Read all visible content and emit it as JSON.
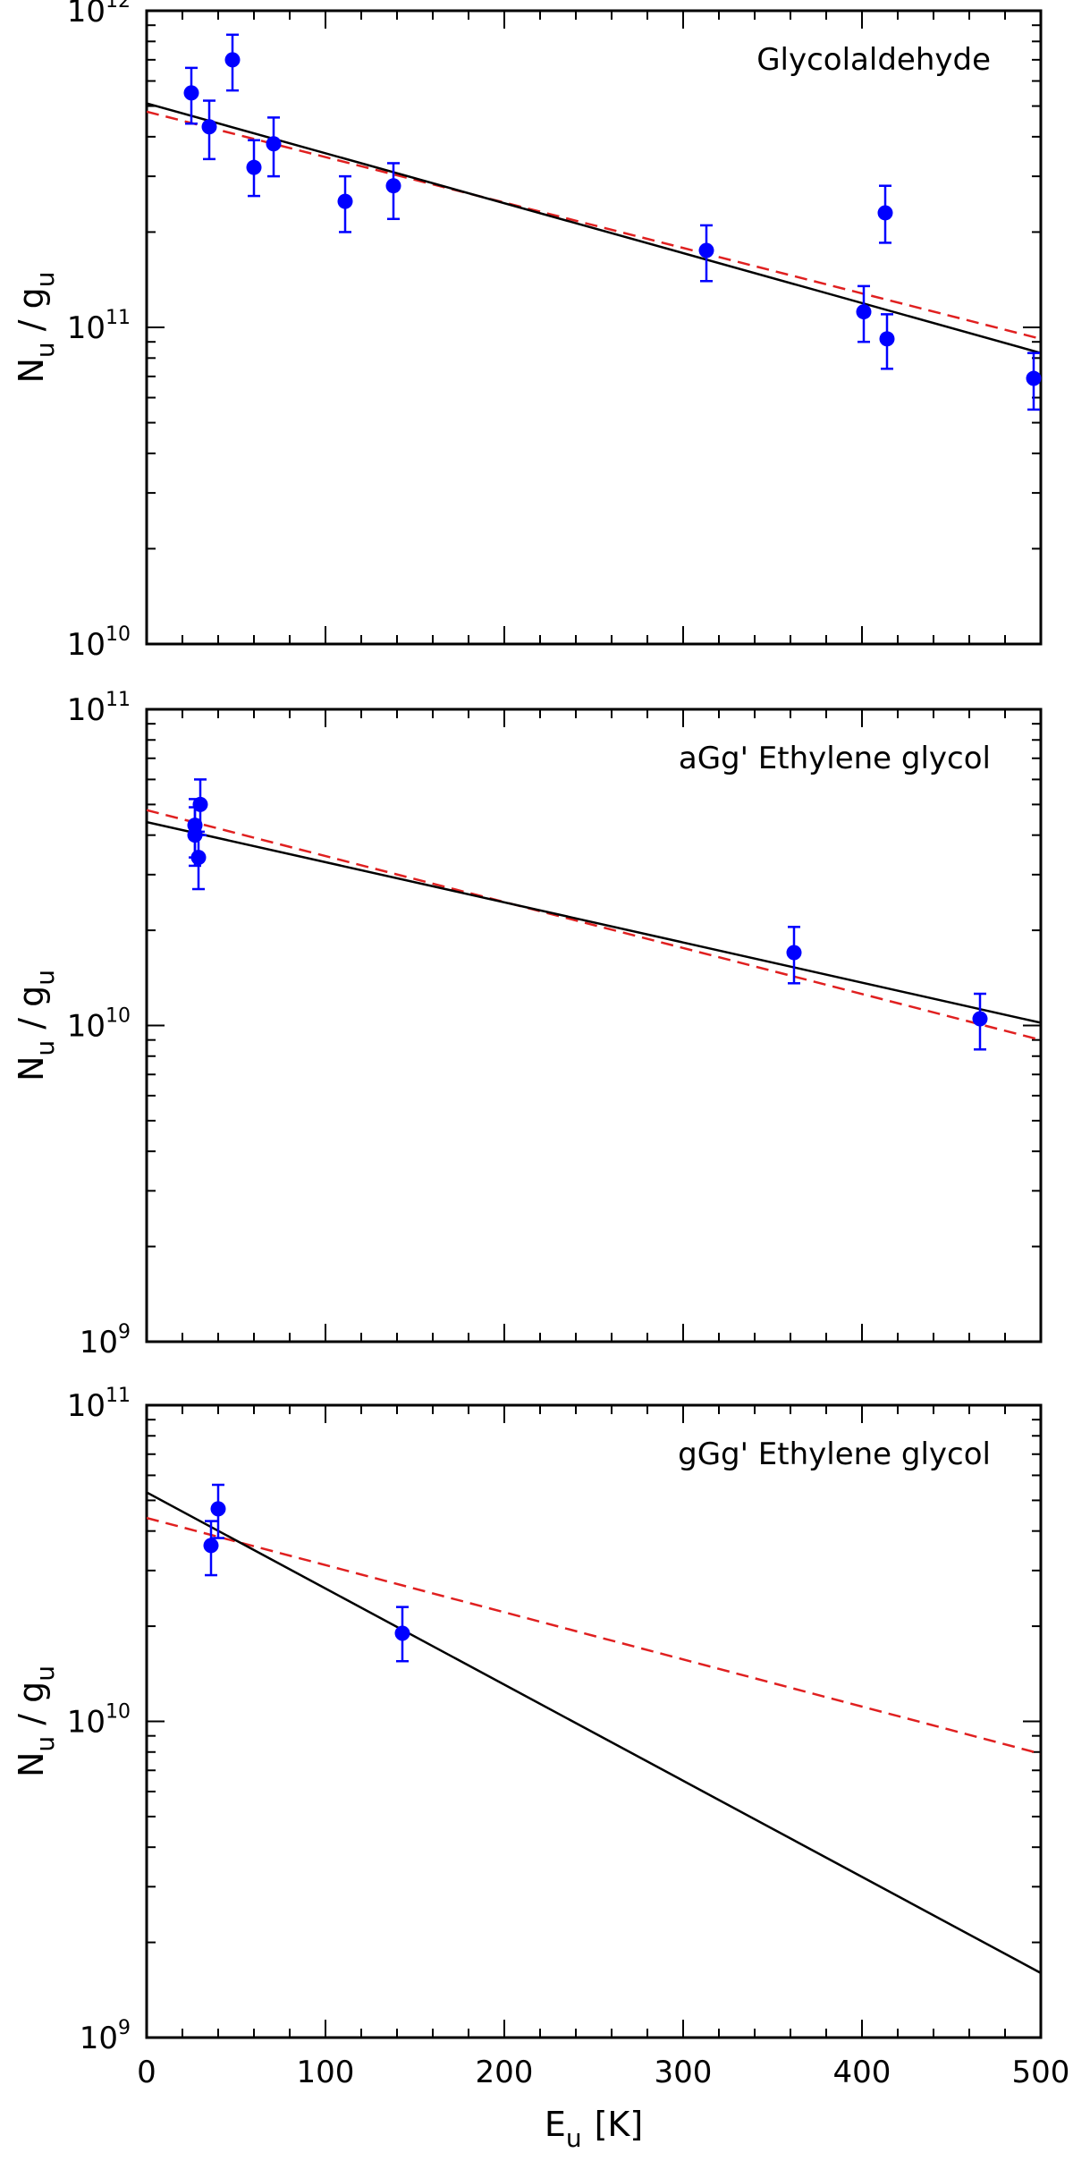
{
  "chart_data": [
    {
      "type": "scatter",
      "title": "Glycolaldehyde",
      "ylabel_main": "N",
      "ylabel_sub": "u",
      "ylabel_sep": " / ",
      "ylabel_main2": "g",
      "ylabel_sub2": "u",
      "xlim": [
        0,
        500
      ],
      "ylim": [
        10000000000.0,
        1000000000000.0
      ],
      "yscale": "log",
      "y_ticks": [
        {
          "value": 10000000000.0,
          "base": "10",
          "exp": "10"
        },
        {
          "value": 100000000000.0,
          "base": "10",
          "exp": "11"
        },
        {
          "value": 1000000000000.0,
          "base": "10",
          "exp": "12"
        }
      ],
      "points": [
        {
          "x": 25,
          "y": 550000000000.0,
          "lo": 440000000000.0,
          "hi": 660000000000.0
        },
        {
          "x": 35,
          "y": 430000000000.0,
          "lo": 340000000000.0,
          "hi": 520000000000.0
        },
        {
          "x": 48,
          "y": 700000000000.0,
          "lo": 560000000000.0,
          "hi": 840000000000.0
        },
        {
          "x": 60,
          "y": 320000000000.0,
          "lo": 260000000000.0,
          "hi": 390000000000.0
        },
        {
          "x": 71,
          "y": 380000000000.0,
          "lo": 300000000000.0,
          "hi": 460000000000.0
        },
        {
          "x": 111,
          "y": 250000000000.0,
          "lo": 200000000000.0,
          "hi": 300000000000.0
        },
        {
          "x": 138,
          "y": 280000000000.0,
          "lo": 220000000000.0,
          "hi": 330000000000.0
        },
        {
          "x": 313,
          "y": 175000000000.0,
          "lo": 140000000000.0,
          "hi": 210000000000.0
        },
        {
          "x": 401,
          "y": 112000000000.0,
          "lo": 90000000000.0,
          "hi": 135000000000.0
        },
        {
          "x": 413,
          "y": 230000000000.0,
          "lo": 185000000000.0,
          "hi": 280000000000.0
        },
        {
          "x": 414,
          "y": 92000000000.0,
          "lo": 74000000000.0,
          "hi": 110000000000.0
        },
        {
          "x": 496,
          "y": 69000000000.0,
          "lo": 55000000000.0,
          "hi": 83000000000.0
        }
      ],
      "fit_solid": {
        "x": [
          0,
          500
        ],
        "y": [
          510000000000.0,
          83000000000.0
        ]
      },
      "fit_dashed": {
        "x": [
          0,
          500
        ],
        "y": [
          480000000000.0,
          92000000000.0
        ]
      }
    },
    {
      "type": "scatter",
      "title": "aGg' Ethylene glycol",
      "ylabel_main": "N",
      "ylabel_sub": "u",
      "ylabel_sep": " / ",
      "ylabel_main2": "g",
      "ylabel_sub2": "u",
      "xlim": [
        0,
        500
      ],
      "ylim": [
        1000000000.0,
        100000000000.0
      ],
      "yscale": "log",
      "y_ticks": [
        {
          "value": 1000000000.0,
          "base": "10",
          "exp": "9"
        },
        {
          "value": 10000000000.0,
          "base": "10",
          "exp": "10"
        },
        {
          "value": 100000000000.0,
          "base": "10",
          "exp": "11"
        }
      ],
      "points": [
        {
          "x": 27,
          "y": 43000000000.0,
          "lo": 34000000000.0,
          "hi": 52000000000.0
        },
        {
          "x": 27,
          "y": 40000000000.0,
          "lo": 32000000000.0,
          "hi": 49000000000.0
        },
        {
          "x": 30,
          "y": 50000000000.0,
          "lo": 40000000000.0,
          "hi": 60000000000.0
        },
        {
          "x": 29,
          "y": 34000000000.0,
          "lo": 27000000000.0,
          "hi": 41000000000.0
        },
        {
          "x": 362,
          "y": 17000000000.0,
          "lo": 13600000000.0,
          "hi": 20500000000.0
        },
        {
          "x": 466,
          "y": 10500000000.0,
          "lo": 8400000000.0,
          "hi": 12600000000.0
        }
      ],
      "fit_solid": {
        "x": [
          0,
          500
        ],
        "y": [
          44000000000.0,
          10200000000.0
        ]
      },
      "fit_dashed": {
        "x": [
          0,
          500
        ],
        "y": [
          48000000000.0,
          9000000000.0
        ]
      }
    },
    {
      "type": "scatter",
      "title": "gGg' Ethylene glycol",
      "ylabel_main": "N",
      "ylabel_sub": "u",
      "ylabel_sep": " / ",
      "ylabel_main2": "g",
      "ylabel_sub2": "u",
      "xlabel_main": "E",
      "xlabel_sub": "u",
      "xlabel_unit": "[K]",
      "xlim": [
        0,
        500
      ],
      "ylim": [
        1000000000.0,
        100000000000.0
      ],
      "yscale": "log",
      "x_tick_labels": [
        "0",
        "100",
        "200",
        "300",
        "400",
        "500"
      ],
      "y_ticks": [
        {
          "value": 1000000000.0,
          "base": "10",
          "exp": "9"
        },
        {
          "value": 10000000000.0,
          "base": "10",
          "exp": "10"
        },
        {
          "value": 100000000000.0,
          "base": "10",
          "exp": "11"
        }
      ],
      "points": [
        {
          "x": 36,
          "y": 36000000000.0,
          "lo": 29000000000.0,
          "hi": 43000000000.0
        },
        {
          "x": 40,
          "y": 47000000000.0,
          "lo": 38000000000.0,
          "hi": 56000000000.0
        },
        {
          "x": 143,
          "y": 19000000000.0,
          "lo": 15500000000.0,
          "hi": 23000000000.0
        }
      ],
      "fit_solid": {
        "x": [
          0,
          500
        ],
        "y": [
          53000000000.0,
          1600000000.0
        ]
      },
      "fit_dashed": {
        "x": [
          0,
          500
        ],
        "y": [
          44000000000.0,
          7900000000.0
        ]
      }
    }
  ],
  "colors": {
    "points": "#0000ff",
    "fit_solid": "#000000",
    "fit_dashed": "#e02020",
    "axes": "#000000"
  }
}
